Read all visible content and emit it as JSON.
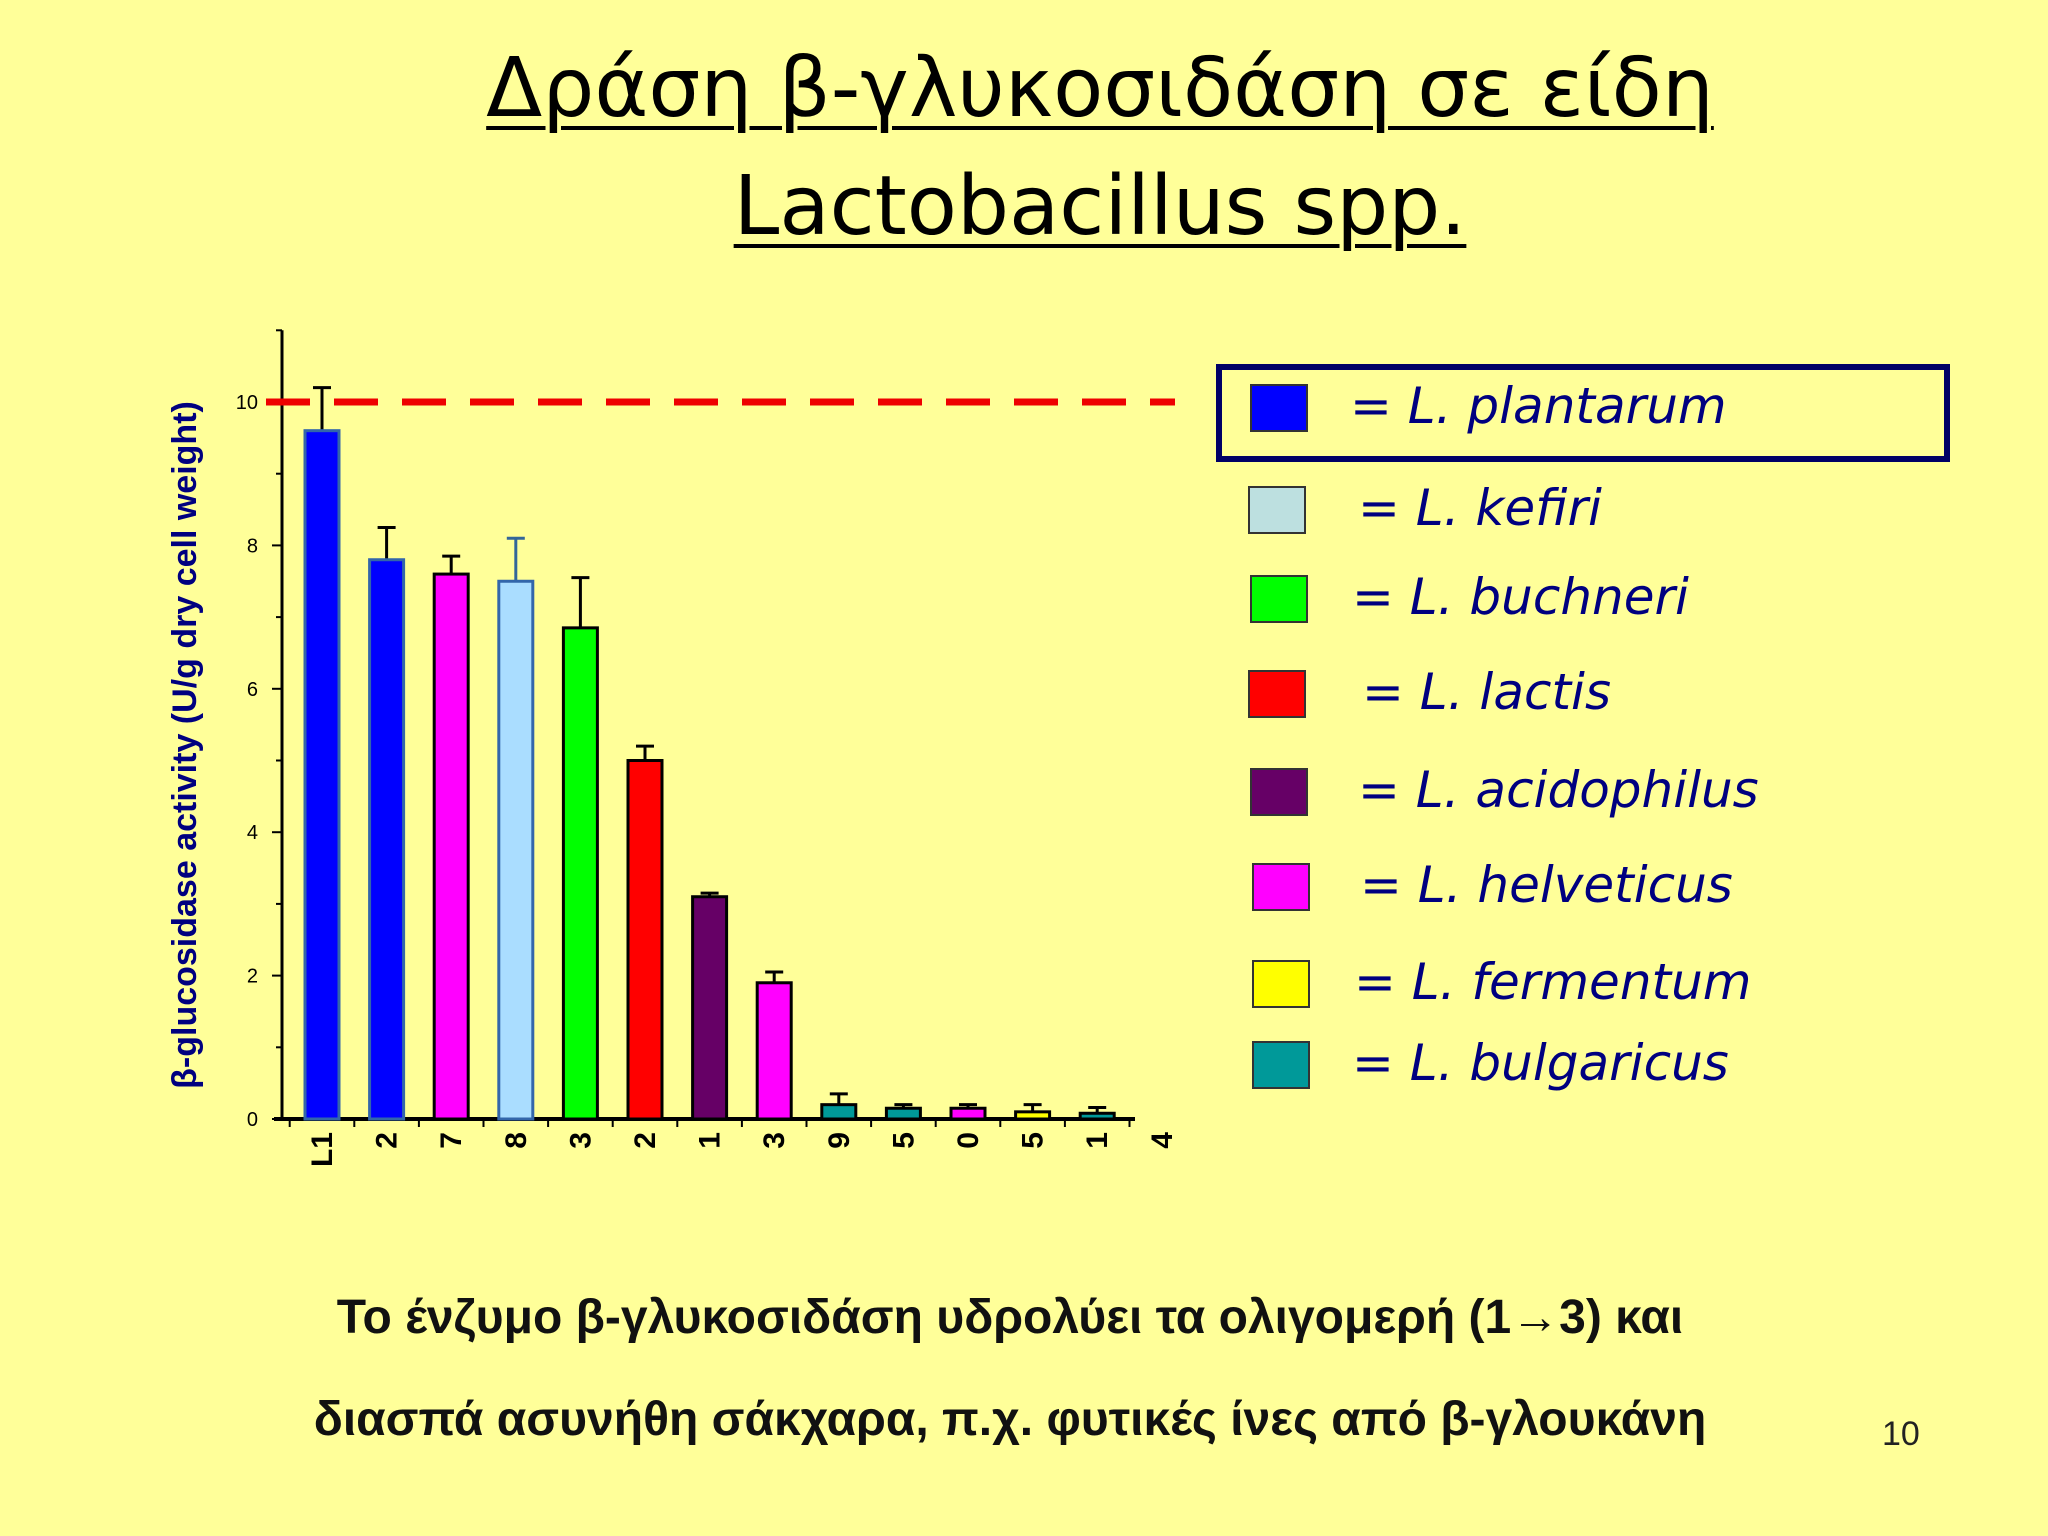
{
  "slide": {
    "title_line1": "Δράση β-γλυκοσιδάση σε είδη",
    "title_line2": "Lactobacillus spp.",
    "caption_line1": "Το ένζυμο β-γλυκοσιδάση υδρολύει τα ολιγομερή (1→3) και",
    "caption_line2": "διασπά ασυνήθη σάκχαρα, π.χ. φυτικές ίνες από β-γλουκάνη",
    "page_number": "10"
  },
  "legend": [
    {
      "key": "plantarum",
      "label": "= L. plantarum",
      "color": "#0000ff"
    },
    {
      "key": "kefiri",
      "label": "= L. kefiri",
      "color": "#bde0e0"
    },
    {
      "key": "buchneri",
      "label": "= L. buchneri",
      "color": "#00ff00"
    },
    {
      "key": "lactis",
      "label": "= L. lactis",
      "color": "#ff0000"
    },
    {
      "key": "acidophilus",
      "label": "= L. acidophilus",
      "color": "#660066"
    },
    {
      "key": "helveticus",
      "label": "= L. helveticus",
      "color": "#ff00ff"
    },
    {
      "key": "fermentum",
      "label": "= L. fermentum",
      "color": "#ffff00"
    },
    {
      "key": "bulgaricus",
      "label": "= L. bulgaricus",
      "color": "#009999"
    }
  ],
  "chart_data": {
    "type": "bar",
    "ylabel": "β-glucosidase activity (U/g dry cell  weight)",
    "ylim": [
      0,
      11
    ],
    "yticks": [
      0,
      2,
      4,
      6,
      8,
      10
    ],
    "reference_line": {
      "y": 10,
      "color": "#ee0000",
      "style": "dashed"
    },
    "categories": [
      "L1",
      "2",
      "7",
      "8",
      "3",
      "2",
      "1",
      "3",
      "9",
      "5",
      "0",
      "5",
      "1",
      "4"
    ],
    "bars": [
      {
        "category": "L1",
        "value": 9.6,
        "error": 0.6,
        "species": "plantarum",
        "color": "#0000ff"
      },
      {
        "category": "2",
        "value": 7.8,
        "error": 0.45,
        "species": "plantarum",
        "color": "#0000ff"
      },
      {
        "category": "7",
        "value": 7.6,
        "error": 0.25,
        "species": "helveticus",
        "color": "#ff00ff"
      },
      {
        "category": "8",
        "value": 7.5,
        "error": 0.6,
        "species": "kefiri",
        "color": "#aaddff"
      },
      {
        "category": "3",
        "value": 6.85,
        "error": 0.7,
        "species": "buchneri",
        "color": "#00ff00"
      },
      {
        "category": "2",
        "value": 5.0,
        "error": 0.2,
        "species": "lactis",
        "color": "#ff0000"
      },
      {
        "category": "1",
        "value": 3.1,
        "error": 0.05,
        "species": "acidophilus",
        "color": "#660066"
      },
      {
        "category": "3",
        "value": 1.9,
        "error": 0.15,
        "species": "helveticus",
        "color": "#ff00ff"
      },
      {
        "category": "9",
        "value": 0.2,
        "error": 0.15,
        "species": "bulgaricus",
        "color": "#009999"
      },
      {
        "category": "5",
        "value": 0.15,
        "error": 0.05,
        "species": "bulgaricus",
        "color": "#009999"
      },
      {
        "category": "0",
        "value": 0.15,
        "error": 0.05,
        "species": "helveticus",
        "color": "#ff00ff"
      },
      {
        "category": "5",
        "value": 0.1,
        "error": 0.1,
        "species": "fermentum",
        "color": "#ffff00"
      },
      {
        "category": "1",
        "value": 0.08,
        "error": 0.08,
        "species": "bulgaricus",
        "color": "#009999"
      },
      {
        "category": "4",
        "value": 0,
        "error": 0,
        "species": "",
        "color": "#000000"
      }
    ],
    "legend_position": "right"
  }
}
